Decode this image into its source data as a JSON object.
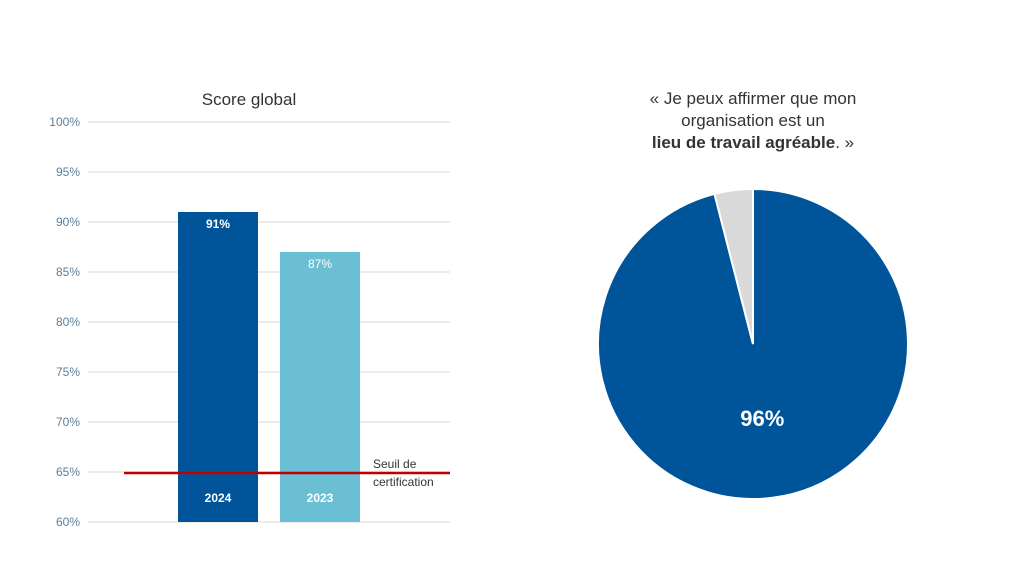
{
  "chart_data": [
    {
      "type": "bar",
      "title": "Score global",
      "categories": [
        "2024",
        "2023"
      ],
      "values": [
        91,
        87
      ],
      "value_labels": [
        "91%",
        "87%"
      ],
      "bar_colors": [
        "#00549A",
        "#6BBFD4"
      ],
      "ylim": [
        60,
        100
      ],
      "yticks": [
        "60%",
        "65%",
        "70%",
        "75%",
        "80%",
        "85%",
        "90%",
        "95%",
        "100%"
      ],
      "threshold": {
        "value": 65,
        "label_line1": "Seuil de",
        "label_line2": "certification",
        "color": "#C00000"
      },
      "grid": true,
      "legend": false
    },
    {
      "type": "pie",
      "title_parts": {
        "line1": "« Je peux affirmer que mon",
        "line2": "organisation est un",
        "bold": "lieu de travail agréable",
        "tail": ". »"
      },
      "slices": [
        {
          "value": 96,
          "label": "96%",
          "color": "#00549A"
        },
        {
          "value": 4,
          "label": "",
          "color": "#D9D9D9"
        }
      ]
    }
  ],
  "colors": {
    "grid": "#D9D9D9",
    "axis_text": "#5B7F99",
    "title": "#333333"
  }
}
